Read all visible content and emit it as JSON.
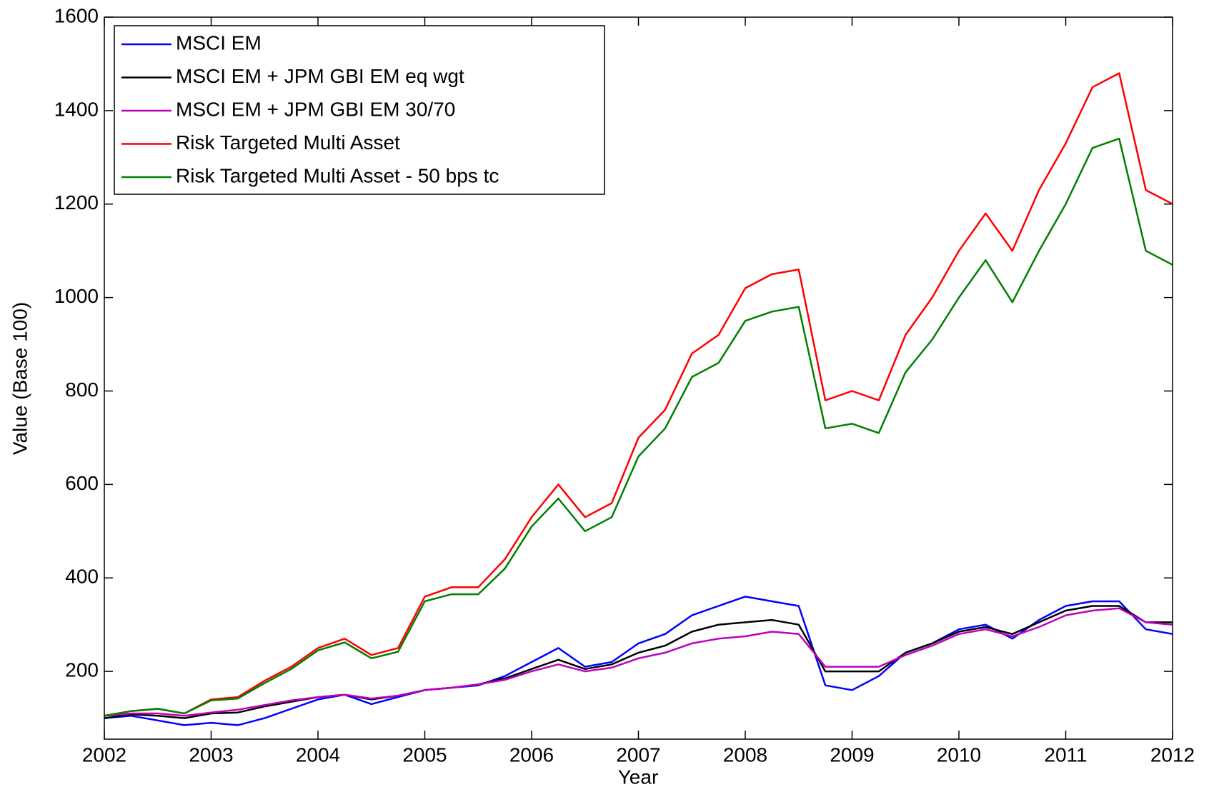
{
  "chart_data": {
    "type": "line",
    "xlabel": "Year",
    "ylabel": "Value (Base 100)",
    "x": [
      2002,
      2002.25,
      2002.5,
      2002.75,
      2003,
      2003.25,
      2003.5,
      2003.75,
      2004,
      2004.25,
      2004.5,
      2004.75,
      2005,
      2005.25,
      2005.5,
      2005.75,
      2006,
      2006.25,
      2006.5,
      2006.75,
      2007,
      2007.25,
      2007.5,
      2007.75,
      2008,
      2008.25,
      2008.5,
      2008.75,
      2009,
      2009.25,
      2009.5,
      2009.75,
      2010,
      2010.25,
      2010.5,
      2010.75,
      2011,
      2011.25,
      2011.5,
      2011.75,
      2012
    ],
    "xlim": [
      2002,
      2012
    ],
    "xticks": [
      2002,
      2003,
      2004,
      2005,
      2006,
      2007,
      2008,
      2009,
      2010,
      2011,
      2012
    ],
    "ylim": [
      55,
      1600
    ],
    "yticks": [
      200,
      400,
      600,
      800,
      1000,
      1200,
      1400,
      1600
    ],
    "grid": false,
    "legend": "upper-left",
    "series": [
      {
        "name": "MSCI EM",
        "color": "#0000ff",
        "values": [
          100,
          105,
          95,
          85,
          90,
          85,
          100,
          120,
          140,
          150,
          130,
          145,
          160,
          165,
          170,
          190,
          220,
          250,
          210,
          220,
          260,
          280,
          320,
          340,
          360,
          350,
          340,
          170,
          160,
          190,
          240,
          260,
          290,
          300,
          270,
          310,
          340,
          350,
          350,
          290,
          280
        ]
      },
      {
        "name": "MSCI EM + JPM GBI EM eq wgt",
        "color": "#000000",
        "values": [
          100,
          108,
          105,
          100,
          110,
          112,
          125,
          135,
          145,
          150,
          140,
          148,
          160,
          165,
          172,
          185,
          205,
          225,
          205,
          215,
          240,
          255,
          285,
          300,
          305,
          310,
          300,
          200,
          200,
          200,
          240,
          260,
          285,
          295,
          280,
          305,
          330,
          340,
          340,
          305,
          305
        ]
      },
      {
        "name": "MSCI EM + JPM GBI EM 30/70",
        "color": "#bf00bf",
        "values": [
          105,
          110,
          110,
          105,
          112,
          118,
          128,
          138,
          145,
          150,
          142,
          148,
          160,
          165,
          172,
          182,
          200,
          215,
          200,
          208,
          228,
          240,
          260,
          270,
          275,
          285,
          280,
          210,
          210,
          210,
          235,
          255,
          280,
          290,
          275,
          295,
          320,
          330,
          335,
          305,
          300
        ]
      },
      {
        "name": "Risk Targeted Multi Asset",
        "color": "#ff0000",
        "values": [
          105,
          115,
          120,
          110,
          140,
          145,
          180,
          210,
          250,
          270,
          235,
          250,
          360,
          380,
          380,
          440,
          530,
          600,
          530,
          560,
          700,
          760,
          880,
          920,
          1020,
          1050,
          1060,
          780,
          800,
          780,
          920,
          1000,
          1100,
          1180,
          1100,
          1230,
          1330,
          1450,
          1480,
          1230,
          1200
        ]
      },
      {
        "name": "Risk Targeted Multi Asset - 50 bps tc",
        "color": "#008000",
        "values": [
          105,
          115,
          120,
          110,
          138,
          142,
          175,
          205,
          245,
          262,
          228,
          242,
          350,
          365,
          365,
          420,
          510,
          570,
          500,
          530,
          660,
          720,
          830,
          860,
          950,
          970,
          980,
          720,
          730,
          710,
          840,
          910,
          1000,
          1080,
          990,
          1100,
          1200,
          1320,
          1340,
          1100,
          1070
        ]
      }
    ]
  }
}
